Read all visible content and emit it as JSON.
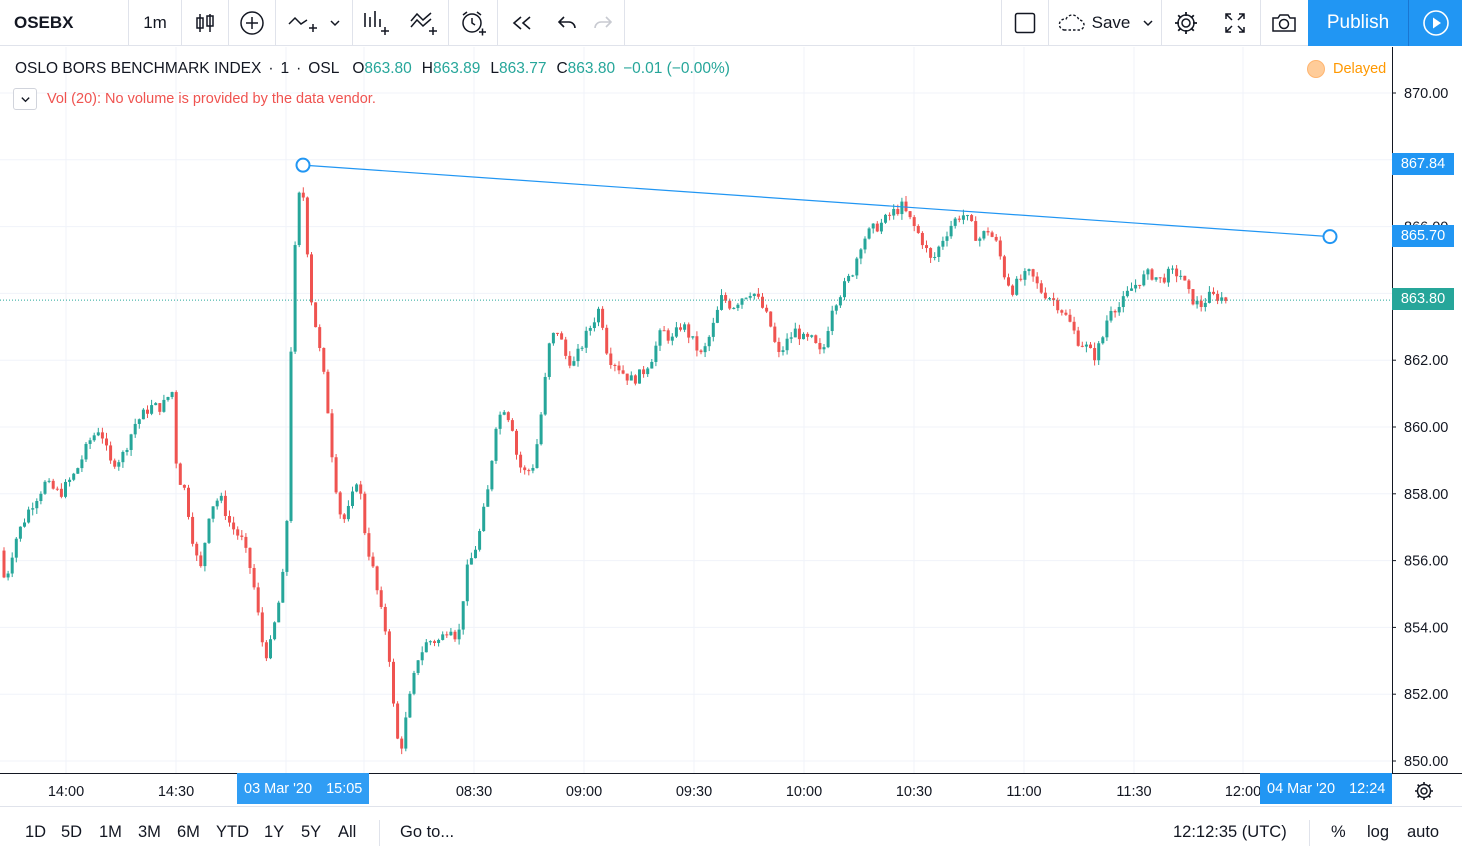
{
  "toolbar": {
    "symbol": "OSEBX",
    "interval": "1m",
    "save_label": "Save",
    "publish_label": "Publish"
  },
  "legend": {
    "title": "OSLO BORS BENCHMARK INDEX",
    "sep1": "·",
    "interval": "1",
    "sep2": "·",
    "exchange": "OSL",
    "o_label": "O",
    "o_value": "863.80",
    "h_label": "H",
    "h_value": "863.89",
    "l_label": "L",
    "l_value": "863.77",
    "c_label": "C",
    "c_value": "863.80",
    "change": "−0.01 (−0.00%)",
    "delayed": "Delayed"
  },
  "study": {
    "text": "Vol (20): No volume is provided by the data vendor."
  },
  "price_scale": {
    "ticks": [
      "870.00",
      "868.00",
      "866.00",
      "864.00",
      "862.00",
      "860.00",
      "858.00",
      "856.00",
      "854.00",
      "852.00",
      "850.00"
    ],
    "labels": {
      "trend_start": "867.84",
      "trend_end": "865.70",
      "last_price": "863.80"
    },
    "colors": {
      "trend": "#2196f3",
      "last_price": "#26a69a"
    }
  },
  "time_axis": {
    "ticks": [
      "14:00",
      "14:30",
      "08:30",
      "09:00",
      "09:30",
      "10:00",
      "10:30",
      "11:00",
      "11:30",
      "12:00"
    ],
    "highlight_left": {
      "date": "03 Mar '20",
      "time": "15:05"
    },
    "highlight_right": {
      "date": "04 Mar '20",
      "time": "12:24"
    }
  },
  "bottom_bar": {
    "ranges": [
      "1D",
      "5D",
      "1M",
      "3M",
      "6M",
      "YTD",
      "1Y",
      "5Y",
      "All"
    ],
    "goto": "Go to...",
    "clock": "12:12:35 (UTC)",
    "percent": "%",
    "log": "log",
    "auto": "auto"
  },
  "chart_data": {
    "type": "candlestick",
    "title": "OSLO BORS BENCHMARK INDEX · 1 · OSL",
    "ylim": [
      849.6,
      871.5
    ],
    "up_color": "#26a69a",
    "down_color": "#ef5350",
    "last_price": 863.8,
    "trendline": {
      "start": 867.84,
      "end": 865.7
    },
    "path": [
      [
        0,
        856.3
      ],
      [
        5,
        855.3
      ],
      [
        15,
        856.6
      ],
      [
        30,
        857.6
      ],
      [
        45,
        858.3
      ],
      [
        60,
        858.0
      ],
      [
        75,
        858.6
      ],
      [
        90,
        859.6
      ],
      [
        100,
        860.0
      ],
      [
        110,
        858.9
      ],
      [
        122,
        859.1
      ],
      [
        135,
        860.1
      ],
      [
        150,
        860.6
      ],
      [
        162,
        860.6
      ],
      [
        172,
        861.1
      ],
      [
        177,
        858.6
      ],
      [
        185,
        858.1
      ],
      [
        193,
        856.6
      ],
      [
        200,
        855.6
      ],
      [
        210,
        857.6
      ],
      [
        220,
        857.9
      ],
      [
        230,
        857.1
      ],
      [
        242,
        856.6
      ],
      [
        252,
        855.6
      ],
      [
        262,
        853.6
      ],
      [
        268,
        853.1
      ],
      [
        278,
        854.6
      ],
      [
        286,
        856.1
      ],
      [
        292,
        863.6
      ],
      [
        298,
        866.9
      ],
      [
        304,
        866.9
      ],
      [
        310,
        864.1
      ],
      [
        318,
        862.6
      ],
      [
        326,
        861.1
      ],
      [
        334,
        858.6
      ],
      [
        342,
        857.1
      ],
      [
        350,
        857.6
      ],
      [
        358,
        858.6
      ],
      [
        366,
        856.6
      ],
      [
        374,
        855.6
      ],
      [
        380,
        854.6
      ],
      [
        388,
        853.6
      ],
      [
        395,
        851.1
      ],
      [
        400,
        850.2
      ],
      [
        408,
        851.6
      ],
      [
        418,
        853.1
      ],
      [
        428,
        853.6
      ],
      [
        440,
        853.6
      ],
      [
        450,
        854.1
      ],
      [
        458,
        853.6
      ],
      [
        466,
        855.6
      ],
      [
        478,
        856.6
      ],
      [
        488,
        858.1
      ],
      [
        496,
        860.1
      ],
      [
        504,
        860.6
      ],
      [
        512,
        860.1
      ],
      [
        518,
        858.9
      ],
      [
        526,
        858.6
      ],
      [
        534,
        858.9
      ],
      [
        540,
        860.1
      ],
      [
        550,
        862.6
      ],
      [
        558,
        862.9
      ],
      [
        566,
        862.1
      ],
      [
        574,
        861.9
      ],
      [
        584,
        862.6
      ],
      [
        592,
        863.1
      ],
      [
        600,
        863.6
      ],
      [
        608,
        862.1
      ],
      [
        616,
        861.9
      ],
      [
        624,
        861.6
      ],
      [
        632,
        861.4
      ],
      [
        642,
        861.6
      ],
      [
        652,
        862.1
      ],
      [
        662,
        862.9
      ],
      [
        672,
        862.6
      ],
      [
        682,
        863.1
      ],
      [
        692,
        862.6
      ],
      [
        702,
        862.1
      ],
      [
        712,
        862.9
      ],
      [
        722,
        863.9
      ],
      [
        732,
        863.6
      ],
      [
        742,
        863.9
      ],
      [
        752,
        864.1
      ],
      [
        762,
        863.6
      ],
      [
        770,
        863.1
      ],
      [
        778,
        862.1
      ],
      [
        788,
        862.6
      ],
      [
        796,
        862.9
      ],
      [
        804,
        862.6
      ],
      [
        812,
        862.6
      ],
      [
        822,
        862.1
      ],
      [
        832,
        863.6
      ],
      [
        842,
        864.1
      ],
      [
        852,
        864.6
      ],
      [
        862,
        865.6
      ],
      [
        872,
        865.9
      ],
      [
        882,
        866.1
      ],
      [
        892,
        866.4
      ],
      [
        902,
        866.6
      ],
      [
        912,
        866.1
      ],
      [
        922,
        865.6
      ],
      [
        932,
        864.9
      ],
      [
        942,
        865.6
      ],
      [
        952,
        866.1
      ],
      [
        962,
        866.4
      ],
      [
        970,
        866.1
      ],
      [
        978,
        865.6
      ],
      [
        988,
        865.9
      ],
      [
        998,
        865.4
      ],
      [
        1004,
        864.6
      ],
      [
        1012,
        864.1
      ],
      [
        1020,
        864.4
      ],
      [
        1030,
        864.6
      ],
      [
        1040,
        864.1
      ],
      [
        1050,
        863.9
      ],
      [
        1060,
        863.6
      ],
      [
        1070,
        863.1
      ],
      [
        1078,
        862.6
      ],
      [
        1086,
        862.4
      ],
      [
        1094,
        862.1
      ],
      [
        1102,
        862.6
      ],
      [
        1110,
        863.6
      ],
      [
        1120,
        863.6
      ],
      [
        1130,
        864.1
      ],
      [
        1140,
        864.4
      ],
      [
        1150,
        864.6
      ],
      [
        1160,
        864.4
      ],
      [
        1170,
        864.6
      ],
      [
        1180,
        864.6
      ],
      [
        1190,
        863.9
      ],
      [
        1200,
        863.6
      ],
      [
        1208,
        863.9
      ],
      [
        1218,
        863.9
      ],
      [
        1228,
        863.8
      ]
    ]
  }
}
